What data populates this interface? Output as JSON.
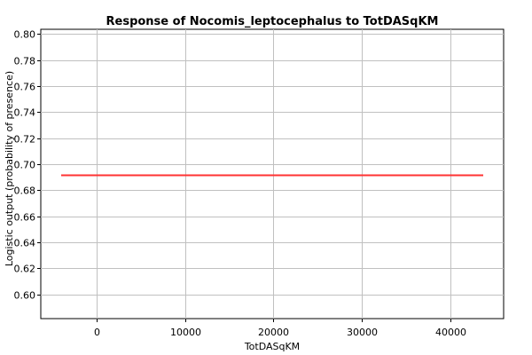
{
  "chart_data": {
    "type": "line",
    "title": "Response of Nocomis_leptocephalus to TotDASqKM",
    "xlabel": "TotDASqKM",
    "ylabel": "Logistic output (probability of presence)",
    "xlim": [
      -6300,
      46000
    ],
    "ylim": [
      0.5815,
      0.8035
    ],
    "xticks": [
      0,
      10000,
      20000,
      30000,
      40000
    ],
    "yticks": [
      0.6,
      0.62,
      0.64,
      0.66,
      0.68,
      0.7,
      0.72,
      0.74,
      0.76,
      0.78,
      0.8
    ],
    "ytick_labels": [
      "0.60",
      "0.62",
      "0.64",
      "0.66",
      "0.68",
      "0.70",
      "0.72",
      "0.74",
      "0.76",
      "0.78",
      "0.80"
    ],
    "grid": true,
    "series": [
      {
        "color": "#ff3333",
        "x": [
          -4000,
          43700
        ],
        "y": [
          0.6915,
          0.6915
        ]
      }
    ]
  }
}
